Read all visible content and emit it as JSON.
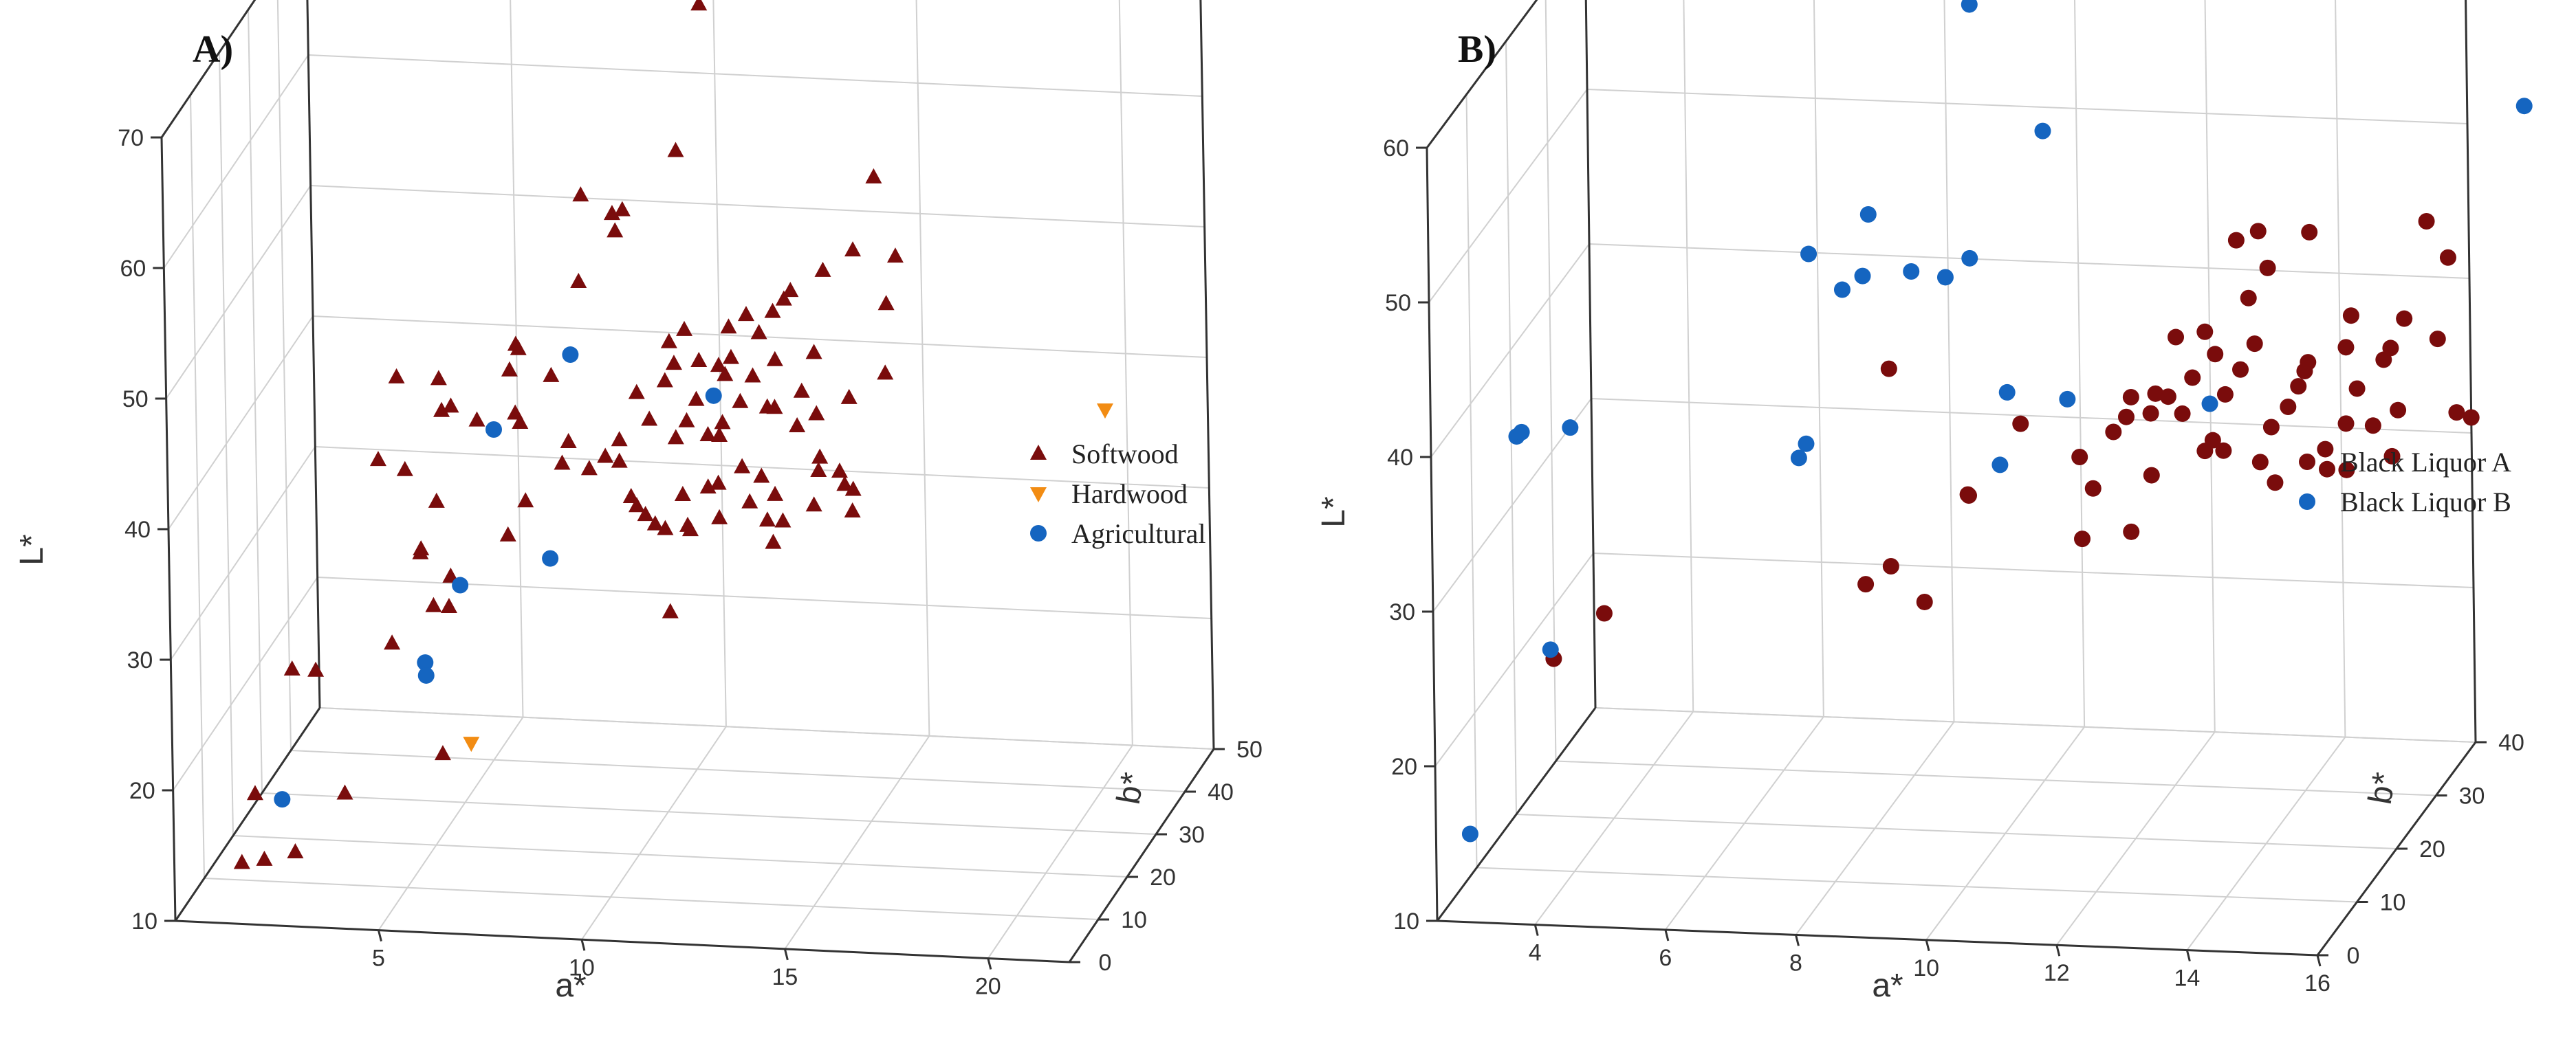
{
  "figure_label": "",
  "chart_data": [
    {
      "type": "scatter3d",
      "title": "A)",
      "xlabel": "a*",
      "ylabel": "L*",
      "zlabel": "b*",
      "x_ticks": [
        "5",
        "10",
        "15",
        "20"
      ],
      "y_ticks": [
        "10",
        "20",
        "30",
        "40",
        "50",
        "60",
        "70"
      ],
      "z_ticks": [
        "0",
        "10",
        "20",
        "30",
        "40",
        "50"
      ],
      "xlim": [
        0,
        22
      ],
      "ylim": [
        10,
        70
      ],
      "zlim": [
        0,
        50
      ],
      "legend_position": "right",
      "series": [
        {
          "name": "Softwood",
          "marker": "triangle-up",
          "color": "#7a0c0c",
          "points": [
            [
              1.3,
              13,
              5
            ],
            [
              2.0,
              14,
              3
            ],
            [
              2.4,
              13,
              8
            ],
            [
              1.8,
              19,
              3
            ],
            [
              3.5,
              17,
              10
            ],
            [
              5.2,
              17,
              20
            ],
            [
              3.2,
              28,
              5
            ],
            [
              2.4,
              27,
              8
            ],
            [
              4.8,
              29,
              9
            ],
            [
              6.0,
              31,
              12
            ],
            [
              5.4,
              30,
              15
            ],
            [
              5.1,
              34,
              15
            ],
            [
              5.3,
              37,
              18
            ],
            [
              4.1,
              41,
              15
            ],
            [
              4.9,
              41,
              13
            ],
            [
              3.8,
              39,
              40
            ],
            [
              3.2,
              41,
              34
            ],
            [
              5.4,
              43,
              22
            ],
            [
              5.6,
              40,
              28
            ],
            [
              6.4,
              40,
              30
            ],
            [
              7.1,
              42,
              22
            ],
            [
              7.3,
              43,
              30
            ],
            [
              7.7,
              38,
              30
            ],
            [
              5.9,
              46,
              12
            ],
            [
              7.3,
              48,
              16
            ],
            [
              7.6,
              50,
              15
            ],
            [
              7.9,
              52,
              10
            ],
            [
              8.6,
              53,
              22
            ],
            [
              9.3,
              56,
              25
            ],
            [
              9.6,
              59,
              20
            ],
            [
              10.0,
              60,
              18
            ],
            [
              9.2,
              62,
              15
            ],
            [
              10.1,
              59,
              35
            ],
            [
              11.1,
              72,
              30
            ],
            [
              14.6,
              56,
              40
            ],
            [
              5.7,
              37,
              7
            ],
            [
              6.2,
              34,
              10
            ],
            [
              6.9,
              34,
              20
            ],
            [
              7.2,
              36,
              22
            ],
            [
              7.9,
              38,
              25
            ],
            [
              8.2,
              36,
              30
            ],
            [
              8.8,
              36,
              32
            ],
            [
              9.0,
              33,
              33
            ],
            [
              9.5,
              34,
              28
            ],
            [
              9.8,
              32,
              30
            ],
            [
              10.2,
              33,
              34
            ],
            [
              10.6,
              32,
              30
            ],
            [
              10.9,
              34,
              33
            ],
            [
              11.3,
              35,
              31
            ],
            [
              11.6,
              35,
              35
            ],
            [
              12.0,
              34,
              36
            ],
            [
              12.4,
              33,
              35
            ],
            [
              12.8,
              32,
              32
            ],
            [
              13.3,
              35,
              38
            ],
            [
              13.7,
              36,
              32
            ],
            [
              14.0,
              35,
              35
            ],
            [
              14.4,
              34,
              34
            ],
            [
              8.6,
              37,
              30
            ],
            [
              9.1,
              39,
              28
            ],
            [
              9.7,
              40,
              30
            ],
            [
              10.2,
              38,
              32
            ],
            [
              10.4,
              39,
              33
            ],
            [
              10.7,
              37,
              36
            ],
            [
              11.2,
              38,
              33
            ],
            [
              11.5,
              40,
              30
            ],
            [
              11.8,
              41,
              32
            ],
            [
              12.1,
              39,
              37
            ],
            [
              12.5,
              40,
              34
            ],
            [
              12.9,
              38,
              36
            ],
            [
              13.1,
              41,
              35
            ],
            [
              13.6,
              40,
              33
            ],
            [
              13.9,
              39,
              40
            ],
            [
              9.4,
              42,
              30
            ],
            [
              10.1,
              43,
              30
            ],
            [
              10.8,
              44,
              32
            ],
            [
              11.3,
              43,
              36
            ],
            [
              11.9,
              42,
              35
            ],
            [
              12.6,
              44,
              33
            ],
            [
              13.2,
              43,
              38
            ],
            [
              10.0,
              45,
              33
            ],
            [
              10.6,
              47,
              30
            ],
            [
              11.4,
              46,
              34
            ],
            [
              12.0,
              45,
              36
            ],
            [
              12.7,
              48,
              35
            ],
            [
              10.5,
              40,
              35
            ],
            [
              11.0,
              41,
              38
            ],
            [
              9.2,
              31,
              35
            ],
            [
              9.9,
              31,
              32
            ],
            [
              10.3,
              30,
              35
            ],
            [
              11.7,
              32,
              36
            ],
            [
              12.2,
              31,
              35
            ],
            [
              12.7,
              31,
              30
            ],
            [
              13.5,
              33,
              33
            ],
            [
              14.3,
              32,
              35
            ],
            [
              13.9,
              33,
              38
            ],
            [
              10.8,
              30,
              38
            ],
            [
              9.6,
              41,
              40
            ],
            [
              10.7,
              41,
              40
            ],
            [
              11.4,
              45,
              40
            ],
            [
              12.2,
              46,
              38
            ],
            [
              12.5,
              47,
              40
            ],
            [
              13.6,
              50,
              36
            ],
            [
              14.2,
              51,
              38
            ],
            [
              15.0,
              47,
              38
            ],
            [
              15.1,
              50,
              40
            ],
            [
              14.8,
              41,
              40
            ],
            [
              10.5,
              27,
              25
            ]
          ]
        },
        {
          "name": "Hardwood",
          "marker": "triangle-down",
          "color": "#f28c13",
          "points": [
            [
              7.0,
              23,
              5
            ],
            [
              20.2,
              39,
              40
            ]
          ]
        },
        {
          "name": "Agricultural",
          "marker": "circle",
          "color": "#1565c0",
          "points": [
            [
              2.1,
              17,
              8
            ],
            [
              5.7,
              30,
              20
            ],
            [
              5.9,
              29,
              5
            ],
            [
              5.7,
              27,
              8
            ],
            [
              7.2,
              29,
              30
            ],
            [
              5.5,
              37,
              35
            ],
            [
              7.2,
              42,
              38
            ],
            [
              10.2,
              37,
              45
            ]
          ]
        }
      ]
    },
    {
      "type": "scatter3d",
      "title": "B)",
      "xlabel": "a*",
      "ylabel": "L*",
      "zlabel": "b*",
      "x_ticks": [
        "4",
        "6",
        "8",
        "10",
        "12",
        "14",
        "16"
      ],
      "y_ticks": [
        "10",
        "20",
        "30",
        "40",
        "50",
        "60"
      ],
      "z_ticks": [
        "0",
        "10",
        "20",
        "30",
        "40"
      ],
      "xlim": [
        2.5,
        16
      ],
      "ylim": [
        10,
        60
      ],
      "zlim": [
        0,
        40
      ],
      "legend_position": "right",
      "series": [
        {
          "name": "Black Liquor A",
          "marker": "circle",
          "color": "#7a0c0c",
          "points": [
            [
              3.6,
              23,
              12
            ],
            [
              4.2,
              25,
              15
            ],
            [
              7.6,
              24,
              25
            ],
            [
              8.5,
              23,
              25
            ],
            [
              8.3,
              27,
              20
            ],
            [
              9.0,
              29,
              28
            ],
            [
              9.2,
              30,
              25
            ],
            [
              8.0,
              38,
              25
            ],
            [
              9.7,
              33,
              30
            ],
            [
              10.8,
              29,
              30
            ],
            [
              10.6,
              31,
              30
            ],
            [
              11.0,
              32,
              32
            ],
            [
              11.5,
              27,
              28
            ],
            [
              11.7,
              30,
              30
            ],
            [
              11.2,
              33,
              32
            ],
            [
              11.7,
              34,
              30
            ],
            [
              12.0,
              33,
              33
            ],
            [
              12.1,
              35,
              34
            ],
            [
              12.6,
              34,
              34
            ],
            [
              12.9,
              36,
              33
            ],
            [
              12.5,
              30,
              35
            ],
            [
              13.3,
              32,
              34
            ],
            [
              13.5,
              33,
              35
            ],
            [
              13.7,
              35,
              36
            ],
            [
              13.0,
              37,
              35
            ],
            [
              14.0,
              37,
              32
            ],
            [
              14.4,
              37,
              35
            ],
            [
              14.2,
              31,
              38
            ],
            [
              14.8,
              32,
              35
            ],
            [
              14.5,
              34,
              36
            ],
            [
              15.1,
              37,
              33
            ],
            [
              15.3,
              39,
              35
            ],
            [
              12.1,
              39,
              30
            ],
            [
              12.7,
              38,
              30
            ],
            [
              13.1,
              41,
              32
            ],
            [
              13.4,
              43,
              32
            ],
            [
              12.8,
              44,
              34
            ],
            [
              13.2,
              45,
              33
            ],
            [
              13.8,
              44,
              36
            ],
            [
              14.3,
              38,
              38
            ],
            [
              15.8,
              42,
              38
            ],
            [
              15.6,
              45,
              36
            ],
            [
              16.0,
              31,
              40
            ],
            [
              15.9,
              32,
              38
            ],
            [
              14.0,
              30,
              36
            ],
            [
              13.1,
              27,
              38
            ],
            [
              13.9,
              28,
              38
            ],
            [
              14.9,
              29,
              38
            ],
            [
              15.0,
              32,
              38
            ],
            [
              13.6,
              34,
              36
            ],
            [
              12.4,
              31,
              32
            ],
            [
              11.9,
              36,
              28
            ],
            [
              11.4,
              35,
              30
            ],
            [
              12.3,
              38,
              34
            ],
            [
              14.9,
              36,
              38
            ],
            [
              15.5,
              36,
              40
            ],
            [
              14.2,
              28,
              38
            ],
            [
              10.5,
              25,
              32
            ],
            [
              12.4,
              31,
              34
            ],
            [
              11.6,
              33,
              36
            ],
            [
              13.0,
              29,
              36
            ]
          ]
        },
        {
          "name": "Black Liquor B",
          "marker": "circle",
          "color": "#1565c0",
          "points": [
            [
              2.9,
              15,
              2
            ],
            [
              3.8,
              25,
              8
            ],
            [
              3.2,
              38,
              10
            ],
            [
              3.4,
              39,
              8
            ],
            [
              3.9,
              38,
              12
            ],
            [
              6.6,
              32,
              25
            ],
            [
              6.9,
              34,
              22
            ],
            [
              7.1,
              47,
              20
            ],
            [
              7.3,
              43,
              25
            ],
            [
              7.8,
              45,
              22
            ],
            [
              7.9,
              49,
              22
            ],
            [
              8.3,
              44,
              26
            ],
            [
              8.7,
              43,
              28
            ],
            [
              9.2,
              45,
              26
            ],
            [
              9.5,
              35,
              30
            ],
            [
              9.5,
              31,
              28
            ],
            [
              9.0,
              60,
              30
            ],
            [
              10.1,
              52,
              30
            ],
            [
              10.3,
              34,
              32
            ],
            [
              12.3,
              33,
              35
            ],
            [
              17.0,
              52,
              38
            ]
          ]
        }
      ]
    }
  ]
}
